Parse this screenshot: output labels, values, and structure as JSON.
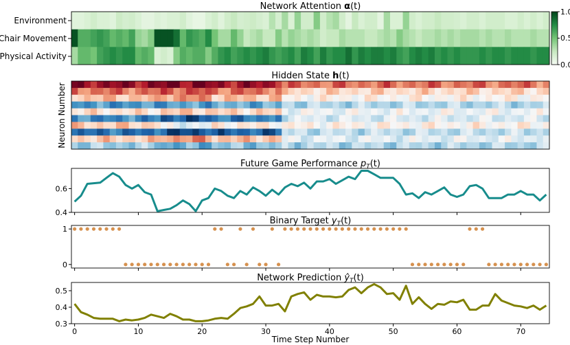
{
  "chart_data": [
    {
      "type": "heatmap",
      "title_main": "Network Attention ",
      "title_bold": "α",
      "title_end": "(t)",
      "rows": [
        "Environment",
        "Chair Movement",
        "Physical Activity"
      ],
      "colorbar_ticks": [
        "1.0",
        "0.5",
        "0.0"
      ],
      "colorscale": "Greens",
      "vmin": 0,
      "vmax": 1,
      "values": [
        [
          0.12,
          0.12,
          0.15,
          0.2,
          0.15,
          0.15,
          0.12,
          0.22,
          0.18,
          0.2,
          0.15,
          0.1,
          0.1,
          0.14,
          0.12,
          0.15,
          0.15,
          0.2,
          0.12,
          0.08,
          0.08,
          0.15,
          0.2,
          0.12,
          0.2,
          0.25,
          0.18,
          0.2,
          0.22,
          0.18,
          0.15,
          0.3,
          0.18,
          0.35,
          0.15,
          0.4,
          0.2,
          0.2,
          0.45,
          0.2,
          0.3,
          0.35,
          0.2,
          0.1,
          0.25,
          0.15,
          0.2,
          0.2,
          0.1,
          0.35,
          0.15,
          0.15,
          0.4,
          0.2,
          0.15,
          0.2,
          0.2,
          0.25,
          0.2,
          0.2,
          0.18,
          0.15,
          0.2,
          0.2,
          0.15,
          0.2,
          0.2,
          0.2,
          0.15,
          0.15,
          0.2,
          0.15,
          0.2,
          0.15,
          0.2
        ],
        [
          0.95,
          0.6,
          0.6,
          0.65,
          0.7,
          0.65,
          0.55,
          0.6,
          0.55,
          0.65,
          0.4,
          0.35,
          0.45,
          0.95,
          0.95,
          0.95,
          0.85,
          0.55,
          0.7,
          0.65,
          0.6,
          0.75,
          0.5,
          0.35,
          0.35,
          0.55,
          0.4,
          0.25,
          0.3,
          0.35,
          0.25,
          0.25,
          0.45,
          0.3,
          0.4,
          0.35,
          0.3,
          0.35,
          0.3,
          0.2,
          0.25,
          0.25,
          0.35,
          0.3,
          0.3,
          0.3,
          0.25,
          0.25,
          0.3,
          0.35,
          0.3,
          0.45,
          0.35,
          0.3,
          0.25,
          0.3,
          0.3,
          0.35,
          0.3,
          0.35,
          0.3,
          0.35,
          0.35,
          0.35,
          0.3,
          0.35,
          0.3,
          0.3,
          0.35,
          0.3,
          0.3,
          0.3,
          0.35,
          0.3,
          0.3
        ],
        [
          0.35,
          0.55,
          0.55,
          0.5,
          0.65,
          0.7,
          0.75,
          0.7,
          0.75,
          0.75,
          0.55,
          0.6,
          0.55,
          0.15,
          0.2,
          0.15,
          0.45,
          0.6,
          0.55,
          0.6,
          0.6,
          0.45,
          0.6,
          0.7,
          0.75,
          0.65,
          0.7,
          0.75,
          0.7,
          0.75,
          0.8,
          0.7,
          0.65,
          0.7,
          0.75,
          0.65,
          0.8,
          0.75,
          0.65,
          0.8,
          0.7,
          0.75,
          0.75,
          0.85,
          0.7,
          0.8,
          0.75,
          0.8,
          0.8,
          0.75,
          0.8,
          0.7,
          0.65,
          0.75,
          0.8,
          0.75,
          0.8,
          0.7,
          0.75,
          0.7,
          0.75,
          0.7,
          0.7,
          0.7,
          0.75,
          0.7,
          0.75,
          0.75,
          0.7,
          0.75,
          0.75,
          0.75,
          0.7,
          0.75,
          0.75
        ]
      ]
    },
    {
      "type": "heatmap",
      "title_main": "Hidden State ",
      "title_bold": "h",
      "title_end": "(t)",
      "ylabel": "Neuron Number",
      "colorscale": "RdBu_r",
      "vmin": -1,
      "vmax": 1,
      "seg_breaks": [
        14,
        22,
        33
      ],
      "neuron_profiles": [
        [
          0.88,
          0.92,
          0.85,
          0.55
        ],
        [
          0.55,
          0.62,
          0.55,
          0.2
        ],
        [
          0.3,
          0.45,
          0.3,
          0.05
        ],
        [
          -0.6,
          -0.55,
          -0.5,
          -0.3
        ],
        [
          0.15,
          0.25,
          0.2,
          -0.05
        ],
        [
          -0.65,
          -0.85,
          -0.7,
          -0.15
        ],
        [
          0.25,
          -0.1,
          0.1,
          0.05
        ],
        [
          -0.75,
          -0.9,
          -0.8,
          -0.25
        ],
        [
          0.25,
          0.45,
          0.3,
          -0.1
        ],
        [
          -0.35,
          -0.5,
          -0.4,
          -0.3
        ]
      ]
    },
    {
      "type": "line",
      "title_main": "Future Game Performance ",
      "title_sym": "p",
      "title_sub": "T",
      "title_end": "(t)",
      "color": "#178c8c",
      "ylim": [
        0.4,
        0.77
      ],
      "yticks": [
        0.4,
        0.6
      ],
      "y": [
        0.49,
        0.54,
        0.64,
        0.645,
        0.65,
        0.69,
        0.73,
        0.7,
        0.63,
        0.6,
        0.63,
        0.57,
        0.55,
        0.41,
        0.42,
        0.43,
        0.46,
        0.5,
        0.47,
        0.41,
        0.5,
        0.52,
        0.6,
        0.58,
        0.54,
        0.52,
        0.58,
        0.55,
        0.61,
        0.58,
        0.54,
        0.59,
        0.55,
        0.61,
        0.64,
        0.62,
        0.65,
        0.6,
        0.66,
        0.66,
        0.68,
        0.64,
        0.67,
        0.7,
        0.68,
        0.75,
        0.75,
        0.72,
        0.69,
        0.69,
        0.69,
        0.64,
        0.55,
        0.56,
        0.52,
        0.57,
        0.55,
        0.58,
        0.61,
        0.55,
        0.53,
        0.55,
        0.62,
        0.63,
        0.6,
        0.52,
        0.52,
        0.52,
        0.55,
        0.55,
        0.58,
        0.55,
        0.55,
        0.5,
        0.55
      ]
    },
    {
      "type": "scatter",
      "title_main": "Binary Target ",
      "title_sym": "y",
      "title_sub": "T",
      "title_end": "(t)",
      "color": "#d6914f",
      "ylim": [
        -0.1,
        1.1
      ],
      "yticks": [
        0,
        1
      ],
      "y": [
        1,
        1,
        1,
        1,
        1,
        1,
        1,
        1,
        0,
        0,
        0,
        0,
        0,
        0,
        0,
        0,
        0,
        0,
        0,
        0,
        0,
        0,
        1,
        1,
        0,
        0,
        1,
        0,
        1,
        0,
        0,
        1,
        0,
        1,
        1,
        1,
        1,
        1,
        1,
        1,
        1,
        1,
        1,
        1,
        1,
        1,
        1,
        1,
        1,
        1,
        1,
        1,
        1,
        0,
        0,
        0,
        0,
        0,
        0,
        0,
        0,
        0,
        1,
        1,
        1,
        0,
        0,
        0,
        0,
        0,
        0,
        0,
        0,
        0,
        0
      ],
      "x": [
        0,
        1,
        2,
        3,
        4,
        5,
        6,
        7,
        8,
        9,
        10,
        11,
        12,
        13,
        14,
        15,
        16,
        17,
        18,
        19,
        20,
        21,
        22,
        23,
        24,
        25,
        26,
        28,
        31,
        30,
        32,
        33,
        34,
        35,
        36,
        37,
        38,
        39,
        40,
        41,
        42,
        43,
        44,
        45,
        46,
        47,
        48,
        49,
        50,
        51,
        52,
        53,
        54,
        55,
        56,
        57,
        58,
        59,
        60,
        61,
        62,
        63,
        64,
        65,
        66,
        67,
        68,
        69,
        70,
        71,
        72,
        73,
        74,
        27,
        29
      ]
    },
    {
      "type": "line",
      "title_main": "Network Prediction ",
      "title_sym": "ŷ",
      "title_sub": "T",
      "title_end": "(t)",
      "xlabel": "Time Step Number",
      "color": "#808000",
      "ylim": [
        0.3,
        0.55
      ],
      "yticks": [
        0.3,
        0.4,
        0.5
      ],
      "xticks": [
        0,
        10,
        20,
        30,
        40,
        50,
        60,
        70
      ],
      "y": [
        0.42,
        0.37,
        0.355,
        0.335,
        0.33,
        0.33,
        0.33,
        0.315,
        0.325,
        0.32,
        0.325,
        0.335,
        0.355,
        0.345,
        0.335,
        0.36,
        0.345,
        0.325,
        0.325,
        0.315,
        0.315,
        0.32,
        0.33,
        0.335,
        0.33,
        0.36,
        0.395,
        0.405,
        0.42,
        0.465,
        0.41,
        0.41,
        0.42,
        0.375,
        0.465,
        0.48,
        0.49,
        0.445,
        0.475,
        0.465,
        0.465,
        0.46,
        0.465,
        0.505,
        0.52,
        0.485,
        0.52,
        0.54,
        0.52,
        0.48,
        0.485,
        0.445,
        0.53,
        0.42,
        0.46,
        0.42,
        0.39,
        0.42,
        0.415,
        0.435,
        0.43,
        0.445,
        0.385,
        0.385,
        0.41,
        0.41,
        0.48,
        0.44,
        0.425,
        0.41,
        0.405,
        0.395,
        0.41,
        0.385,
        0.41
      ]
    }
  ]
}
